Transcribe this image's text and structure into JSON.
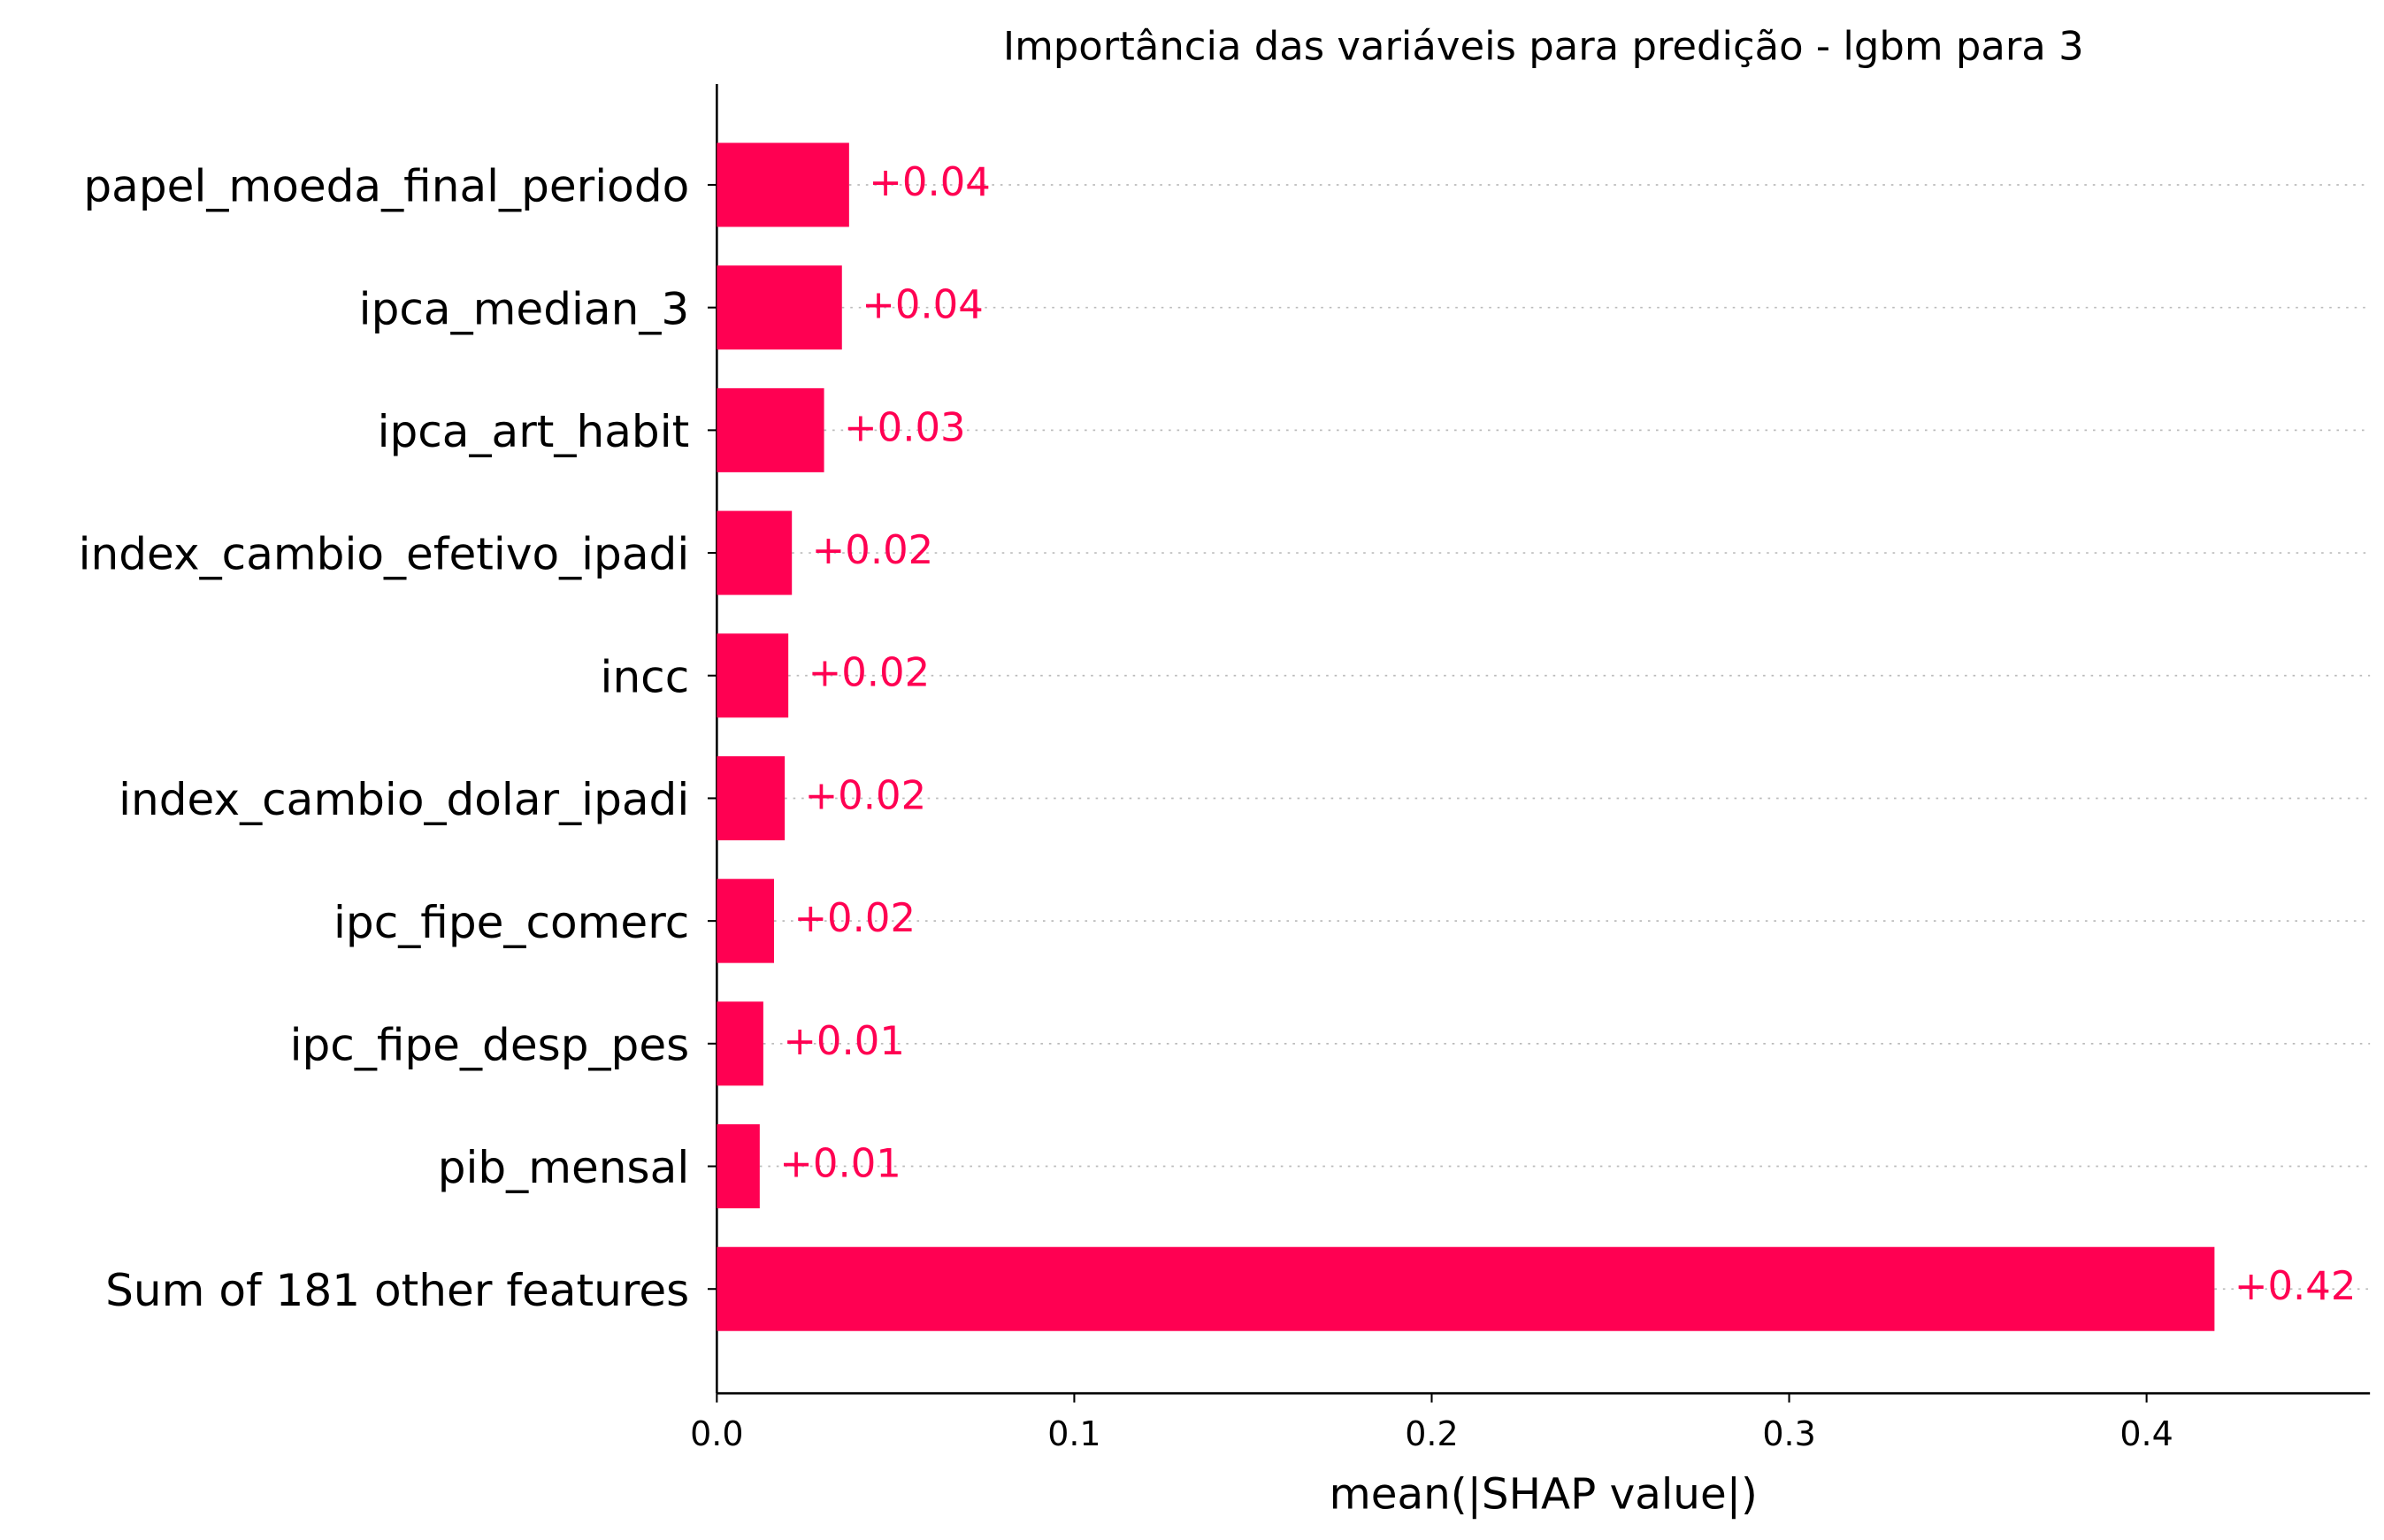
{
  "chart_data": {
    "type": "bar",
    "orientation": "horizontal",
    "title": "Importância das variáveis para predição - lgbm para 3",
    "x_label": "mean(|SHAP value|)",
    "categories": [
      "papel_moeda_final_periodo",
      "ipca_median_3",
      "ipca_art_habit",
      "index_cambio_efetivo_ipadi",
      "incc",
      "index_cambio_dolar_ipadi",
      "ipc_fipe_comerc",
      "ipc_fipe_desp_pes",
      "pib_mensal",
      "Sum of 181 other features"
    ],
    "values": [
      0.037,
      0.035,
      0.03,
      0.021,
      0.02,
      0.019,
      0.016,
      0.013,
      0.012,
      0.419
    ],
    "value_labels": [
      "+0.04",
      "+0.04",
      "+0.03",
      "+0.02",
      "+0.02",
      "+0.02",
      "+0.02",
      "+0.01",
      "+0.01",
      "+0.42"
    ],
    "color": "#ff0052",
    "xlim": [
      0,
      0.4625
    ],
    "xticks": [
      {
        "value": 0,
        "label": "0.0"
      },
      0.1,
      0.2,
      0.3,
      0.4
    ]
  }
}
